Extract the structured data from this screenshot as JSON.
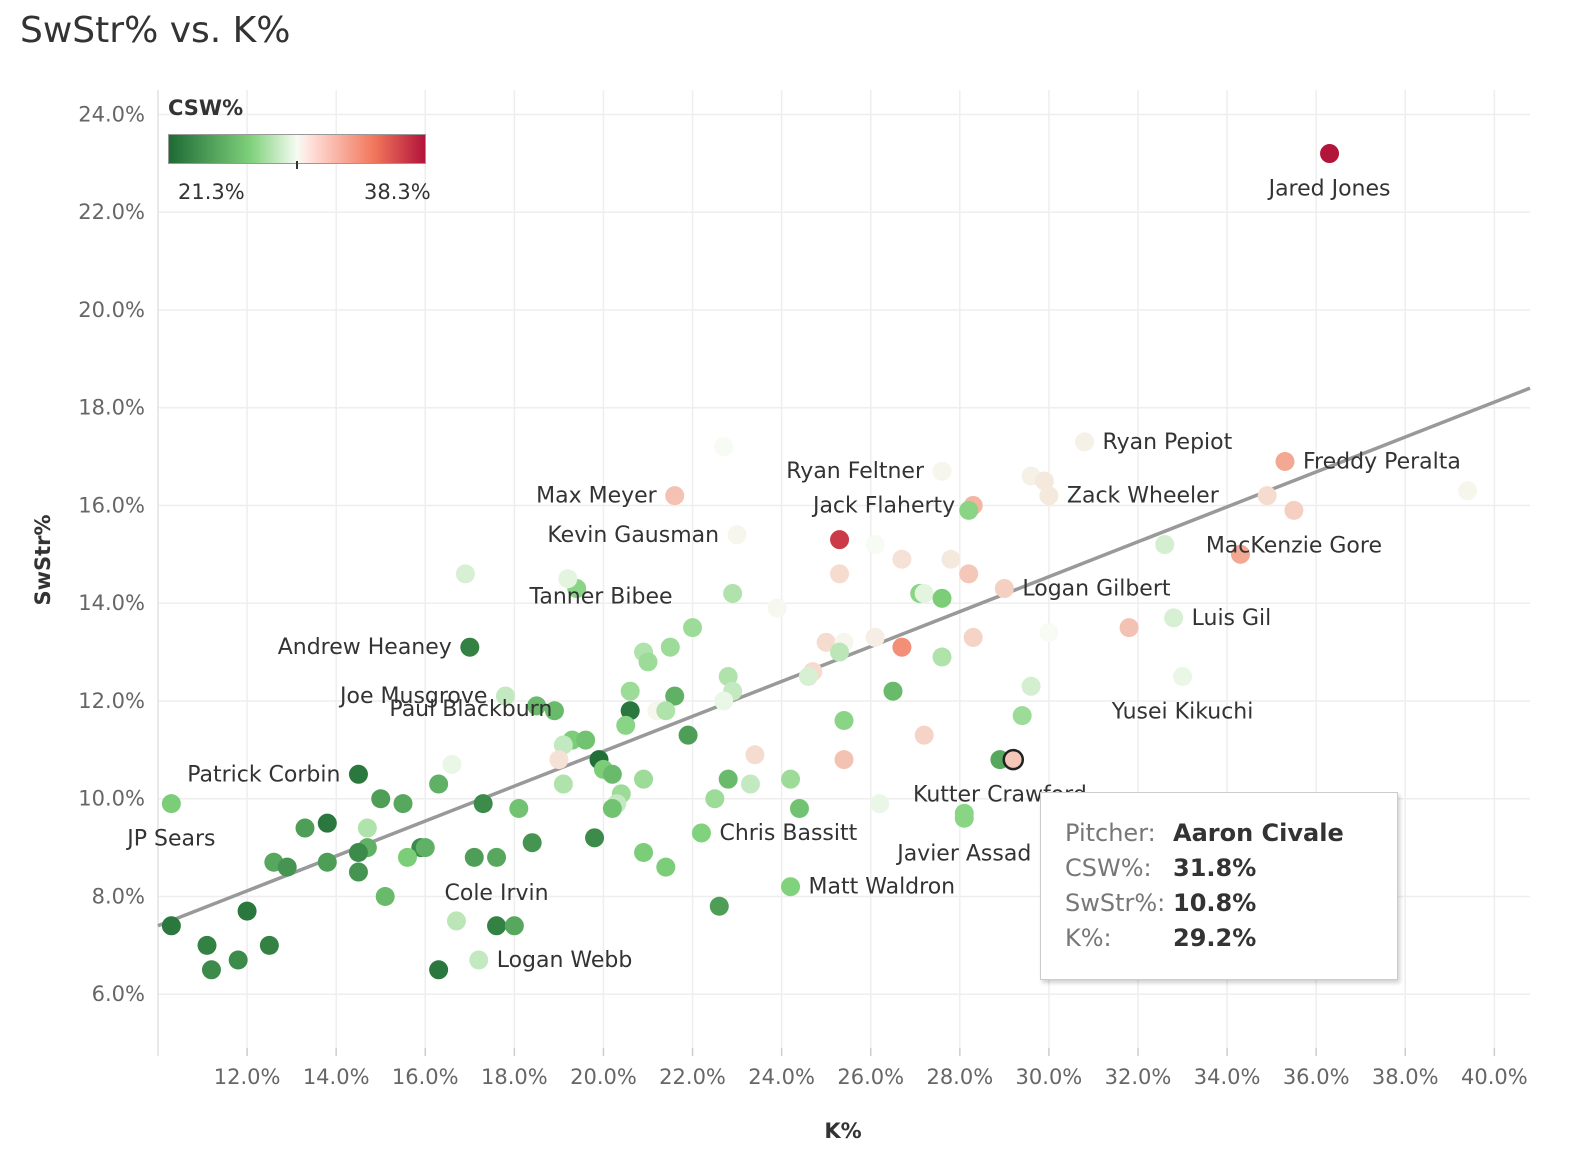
{
  "title": "SwStr% vs. K%",
  "legend": {
    "title": "CSW%",
    "min_label": "21.3%",
    "max_label": "38.3%",
    "min": 21.3,
    "max": 38.3
  },
  "tooltip": {
    "rows": [
      {
        "key": "Pitcher:",
        "value": "Aaron Civale"
      },
      {
        "key": "CSW%:",
        "value": "31.8%"
      },
      {
        "key": "SwStr%:",
        "value": "10.8%"
      },
      {
        "key": "K%:",
        "value": "29.2%"
      }
    ]
  },
  "colors": {
    "low": "#1e6b35",
    "mid_low": "#7fd17b",
    "mid": "#f6fbf3",
    "mid_high": "#f2775c",
    "high": "#b3143a",
    "trend": "#999999",
    "grid": "#eeeeee"
  },
  "chart_data": {
    "type": "scatter",
    "title": "SwStr% vs. K%",
    "xlabel": "K%",
    "ylabel": "SwStr%",
    "xlim": [
      10.0,
      40.8
    ],
    "ylim": [
      4.9,
      24.5
    ],
    "xticks": [
      12,
      14,
      16,
      18,
      20,
      22,
      24,
      26,
      28,
      30,
      32,
      34,
      36,
      38,
      40
    ],
    "xtick_labels": [
      "12.0%",
      "14.0%",
      "16.0%",
      "18.0%",
      "20.0%",
      "22.0%",
      "24.0%",
      "26.0%",
      "28.0%",
      "30.0%",
      "32.0%",
      "34.0%",
      "36.0%",
      "38.0%",
      "40.0%"
    ],
    "yticks": [
      6,
      8,
      10,
      12,
      14,
      16,
      18,
      20,
      22,
      24
    ],
    "ytick_labels": [
      "6.0%",
      "8.0%",
      "10.0%",
      "12.0%",
      "14.0%",
      "16.0%",
      "18.0%",
      "20.0%",
      "22.0%",
      "24.0%"
    ],
    "trendline": {
      "x": [
        10.0,
        40.8
      ],
      "y": [
        7.4,
        18.4
      ]
    },
    "color_field": "CSW%",
    "highlighted": "Aaron Civale",
    "grid": true,
    "points": [
      {
        "name": "Jared Jones",
        "x": 36.3,
        "y": 23.2,
        "csw": 38.3,
        "label_pos": "below"
      },
      {
        "name": "Ryan Pepiot",
        "x": 30.8,
        "y": 17.3,
        "csw": 30.2,
        "label_pos": "right"
      },
      {
        "name": "Freddy Peralta",
        "x": 35.3,
        "y": 16.9,
        "csw": 33.0,
        "label_pos": "right"
      },
      {
        "name": "Ryan Feltner",
        "x": 27.6,
        "y": 16.7,
        "csw": 30.0,
        "label_pos": "left"
      },
      {
        "name": "Max Meyer",
        "x": 21.6,
        "y": 16.2,
        "csw": 32.0,
        "label_pos": "left"
      },
      {
        "name": "Zack Wheeler",
        "x": 30.0,
        "y": 16.2,
        "csw": 30.5,
        "label_pos": "right"
      },
      {
        "name": "Jack Flaherty",
        "x": 28.3,
        "y": 16.0,
        "csw": 32.5,
        "label_pos": "left"
      },
      {
        "name": "MacKenzie Gore",
        "x": 35.5,
        "y": 15.9,
        "csw": 31.5,
        "label_pos": "below"
      },
      {
        "name": "Kevin Gausman",
        "x": 23.0,
        "y": 15.4,
        "csw": 30.0,
        "label_pos": "left"
      },
      {
        "name": "Logan Gilbert",
        "x": 29.0,
        "y": 14.3,
        "csw": 31.5,
        "label_pos": "right"
      },
      {
        "name": "Luis Gil",
        "x": 32.8,
        "y": 13.7,
        "csw": 29.0,
        "label_pos": "right"
      },
      {
        "name": "Tanner Bibee",
        "x": 22.0,
        "y": 13.5,
        "csw": 27.5,
        "label_pos": "aboveleft"
      },
      {
        "name": "Andrew Heaney",
        "x": 17.0,
        "y": 13.1,
        "csw": 22.5,
        "label_pos": "left"
      },
      {
        "name": "Yusei Kikuchi",
        "x": 33.0,
        "y": 12.5,
        "csw": 29.5,
        "label_pos": "below"
      },
      {
        "name": "Joe Musgrove",
        "x": 17.8,
        "y": 12.1,
        "csw": 28.5,
        "label_pos": "left"
      },
      {
        "name": "Paul Blackburn",
        "x": 19.3,
        "y": 11.2,
        "csw": 26.5,
        "label_pos": "aboveleft"
      },
      {
        "name": "Aaron Civale",
        "x": 29.2,
        "y": 10.8,
        "csw": 31.8,
        "label_pos": "none",
        "highlight": true
      },
      {
        "name": "Kutter Crawford",
        "x": 28.9,
        "y": 10.8,
        "csw": 24.5,
        "label_pos": "below"
      },
      {
        "name": "Patrick Corbin",
        "x": 14.5,
        "y": 10.5,
        "csw": 22.0,
        "label_pos": "left"
      },
      {
        "name": "JP Sears",
        "x": 10.3,
        "y": 9.9,
        "csw": 26.5,
        "label_pos": "below"
      },
      {
        "name": "Chris Bassitt",
        "x": 22.2,
        "y": 9.3,
        "csw": 26.8,
        "label_pos": "right"
      },
      {
        "name": "Javier Assad",
        "x": 28.1,
        "y": 9.6,
        "csw": 27.0,
        "label_pos": "below"
      },
      {
        "name": "Matt Waldron",
        "x": 24.2,
        "y": 8.2,
        "csw": 26.8,
        "label_pos": "right"
      },
      {
        "name": "Cole Irvin",
        "x": 17.6,
        "y": 7.4,
        "csw": 22.5,
        "label_pos": "above"
      },
      {
        "name": "Logan Webb",
        "x": 17.2,
        "y": 6.7,
        "csw": 28.5,
        "label_pos": "right"
      },
      {
        "name": "",
        "x": 22.7,
        "y": 17.2,
        "csw": 29.8
      },
      {
        "name": "",
        "x": 26.1,
        "y": 15.2,
        "csw": 29.8
      },
      {
        "name": "",
        "x": 26.7,
        "y": 14.9,
        "csw": 30.8
      },
      {
        "name": "",
        "x": 27.8,
        "y": 14.9,
        "csw": 30.5
      },
      {
        "name": "",
        "x": 25.3,
        "y": 14.6,
        "csw": 31.0
      },
      {
        "name": "",
        "x": 28.2,
        "y": 14.6,
        "csw": 31.8
      },
      {
        "name": "",
        "x": 25.3,
        "y": 15.3,
        "csw": 37.0
      },
      {
        "name": "",
        "x": 29.6,
        "y": 16.6,
        "csw": 30.2
      },
      {
        "name": "",
        "x": 29.9,
        "y": 16.5,
        "csw": 30.5
      },
      {
        "name": "",
        "x": 34.9,
        "y": 16.2,
        "csw": 31.0
      },
      {
        "name": "",
        "x": 39.4,
        "y": 16.3,
        "csw": 30.0
      },
      {
        "name": "",
        "x": 34.3,
        "y": 15.0,
        "csw": 33.0
      },
      {
        "name": "",
        "x": 28.2,
        "y": 15.9,
        "csw": 27.0
      },
      {
        "name": "",
        "x": 32.6,
        "y": 15.2,
        "csw": 28.9
      },
      {
        "name": "",
        "x": 16.9,
        "y": 14.6,
        "csw": 29.0
      },
      {
        "name": "",
        "x": 19.4,
        "y": 14.3,
        "csw": 27.0
      },
      {
        "name": "",
        "x": 19.2,
        "y": 14.5,
        "csw": 29.3
      },
      {
        "name": "",
        "x": 22.9,
        "y": 14.2,
        "csw": 28.0
      },
      {
        "name": "",
        "x": 27.1,
        "y": 14.2,
        "csw": 27.0
      },
      {
        "name": "",
        "x": 27.2,
        "y": 14.2,
        "csw": 29.3
      },
      {
        "name": "",
        "x": 27.6,
        "y": 14.1,
        "csw": 26.5
      },
      {
        "name": "",
        "x": 23.9,
        "y": 13.9,
        "csw": 29.9
      },
      {
        "name": "",
        "x": 31.8,
        "y": 13.5,
        "csw": 32.0
      },
      {
        "name": "",
        "x": 30.0,
        "y": 13.4,
        "csw": 29.8
      },
      {
        "name": "",
        "x": 28.3,
        "y": 13.3,
        "csw": 31.3
      },
      {
        "name": "",
        "x": 26.1,
        "y": 13.3,
        "csw": 30.3
      },
      {
        "name": "",
        "x": 25.0,
        "y": 13.2,
        "csw": 31.0
      },
      {
        "name": "",
        "x": 25.4,
        "y": 13.2,
        "csw": 30.0
      },
      {
        "name": "",
        "x": 26.7,
        "y": 13.1,
        "csw": 34.0
      },
      {
        "name": "",
        "x": 25.3,
        "y": 13.0,
        "csw": 28.3
      },
      {
        "name": "",
        "x": 27.6,
        "y": 12.9,
        "csw": 28.0
      },
      {
        "name": "",
        "x": 20.9,
        "y": 13.0,
        "csw": 28.0
      },
      {
        "name": "",
        "x": 21.0,
        "y": 12.8,
        "csw": 27.5
      },
      {
        "name": "",
        "x": 21.5,
        "y": 13.1,
        "csw": 27.5
      },
      {
        "name": "",
        "x": 24.7,
        "y": 12.6,
        "csw": 31.0
      },
      {
        "name": "",
        "x": 24.6,
        "y": 12.5,
        "csw": 29.0
      },
      {
        "name": "",
        "x": 22.8,
        "y": 12.5,
        "csw": 28.0
      },
      {
        "name": "",
        "x": 22.9,
        "y": 12.2,
        "csw": 28.5
      },
      {
        "name": "",
        "x": 20.6,
        "y": 12.2,
        "csw": 27.5
      },
      {
        "name": "",
        "x": 26.5,
        "y": 12.2,
        "csw": 25.5
      },
      {
        "name": "",
        "x": 29.6,
        "y": 12.3,
        "csw": 28.9
      },
      {
        "name": "",
        "x": 21.6,
        "y": 12.1,
        "csw": 25.0
      },
      {
        "name": "",
        "x": 22.7,
        "y": 12.0,
        "csw": 29.5
      },
      {
        "name": "",
        "x": 21.2,
        "y": 11.8,
        "csw": 30.0
      },
      {
        "name": "",
        "x": 21.4,
        "y": 11.8,
        "csw": 28.0
      },
      {
        "name": "",
        "x": 20.6,
        "y": 11.8,
        "csw": 22.0
      },
      {
        "name": "",
        "x": 18.5,
        "y": 11.9,
        "csw": 25.5
      },
      {
        "name": "",
        "x": 18.9,
        "y": 11.8,
        "csw": 25.5
      },
      {
        "name": "",
        "x": 20.5,
        "y": 11.5,
        "csw": 27.0
      },
      {
        "name": "",
        "x": 25.4,
        "y": 11.6,
        "csw": 27.0
      },
      {
        "name": "",
        "x": 29.4,
        "y": 11.7,
        "csw": 27.5
      },
      {
        "name": "",
        "x": 27.2,
        "y": 11.3,
        "csw": 31.3
      },
      {
        "name": "",
        "x": 21.9,
        "y": 11.3,
        "csw": 24.0
      },
      {
        "name": "",
        "x": 19.6,
        "y": 11.2,
        "csw": 26.0
      },
      {
        "name": "",
        "x": 19.1,
        "y": 11.1,
        "csw": 28.5
      },
      {
        "name": "",
        "x": 23.4,
        "y": 10.9,
        "csw": 31.0
      },
      {
        "name": "",
        "x": 25.4,
        "y": 10.8,
        "csw": 32.0
      },
      {
        "name": "",
        "x": 19.0,
        "y": 10.8,
        "csw": 30.8
      },
      {
        "name": "",
        "x": 19.9,
        "y": 10.8,
        "csw": 21.5
      },
      {
        "name": "",
        "x": 16.6,
        "y": 10.7,
        "csw": 29.5
      },
      {
        "name": "",
        "x": 20.0,
        "y": 10.6,
        "csw": 26.5
      },
      {
        "name": "",
        "x": 20.2,
        "y": 10.5,
        "csw": 25.5
      },
      {
        "name": "",
        "x": 20.9,
        "y": 10.4,
        "csw": 27.5
      },
      {
        "name": "",
        "x": 22.8,
        "y": 10.4,
        "csw": 25.5
      },
      {
        "name": "",
        "x": 24.2,
        "y": 10.4,
        "csw": 27.5
      },
      {
        "name": "",
        "x": 23.3,
        "y": 10.3,
        "csw": 28.5
      },
      {
        "name": "",
        "x": 16.3,
        "y": 10.3,
        "csw": 25.0
      },
      {
        "name": "",
        "x": 19.1,
        "y": 10.3,
        "csw": 28.0
      },
      {
        "name": "",
        "x": 20.4,
        "y": 10.1,
        "csw": 27.5
      },
      {
        "name": "",
        "x": 15.0,
        "y": 10.0,
        "csw": 24.0
      },
      {
        "name": "",
        "x": 15.5,
        "y": 9.9,
        "csw": 24.5
      },
      {
        "name": "",
        "x": 17.3,
        "y": 9.9,
        "csw": 23.0
      },
      {
        "name": "",
        "x": 20.3,
        "y": 9.9,
        "csw": 28.5
      },
      {
        "name": "",
        "x": 22.5,
        "y": 10.0,
        "csw": 27.5
      },
      {
        "name": "",
        "x": 26.2,
        "y": 9.9,
        "csw": 29.5
      },
      {
        "name": "",
        "x": 18.1,
        "y": 9.8,
        "csw": 26.0
      },
      {
        "name": "",
        "x": 20.2,
        "y": 9.8,
        "csw": 26.0
      },
      {
        "name": "",
        "x": 24.4,
        "y": 9.8,
        "csw": 26.0
      },
      {
        "name": "",
        "x": 28.1,
        "y": 9.7,
        "csw": 27.0
      },
      {
        "name": "",
        "x": 13.8,
        "y": 9.5,
        "csw": 22.0
      },
      {
        "name": "",
        "x": 13.3,
        "y": 9.4,
        "csw": 24.0
      },
      {
        "name": "",
        "x": 14.7,
        "y": 9.4,
        "csw": 28.0
      },
      {
        "name": "",
        "x": 19.8,
        "y": 9.2,
        "csw": 23.0
      },
      {
        "name": "",
        "x": 18.4,
        "y": 9.1,
        "csw": 23.5
      },
      {
        "name": "",
        "x": 15.9,
        "y": 9.0,
        "csw": 23.0
      },
      {
        "name": "",
        "x": 16.0,
        "y": 9.0,
        "csw": 25.0
      },
      {
        "name": "",
        "x": 14.7,
        "y": 9.0,
        "csw": 25.0
      },
      {
        "name": "",
        "x": 14.5,
        "y": 8.9,
        "csw": 23.0
      },
      {
        "name": "",
        "x": 15.6,
        "y": 8.8,
        "csw": 26.5
      },
      {
        "name": "",
        "x": 20.9,
        "y": 8.9,
        "csw": 26.5
      },
      {
        "name": "",
        "x": 17.1,
        "y": 8.8,
        "csw": 24.0
      },
      {
        "name": "",
        "x": 17.6,
        "y": 8.8,
        "csw": 24.5
      },
      {
        "name": "",
        "x": 21.4,
        "y": 8.6,
        "csw": 26.5
      },
      {
        "name": "",
        "x": 12.6,
        "y": 8.7,
        "csw": 24.5
      },
      {
        "name": "",
        "x": 12.9,
        "y": 8.6,
        "csw": 23.5
      },
      {
        "name": "",
        "x": 13.8,
        "y": 8.7,
        "csw": 24.0
      },
      {
        "name": "",
        "x": 14.5,
        "y": 8.5,
        "csw": 23.5
      },
      {
        "name": "",
        "x": 15.1,
        "y": 8.0,
        "csw": 25.5
      },
      {
        "name": "",
        "x": 22.6,
        "y": 7.8,
        "csw": 24.0
      },
      {
        "name": "",
        "x": 12.0,
        "y": 7.7,
        "csw": 22.0
      },
      {
        "name": "",
        "x": 16.7,
        "y": 7.5,
        "csw": 28.3
      },
      {
        "name": "",
        "x": 18.0,
        "y": 7.4,
        "csw": 24.5
      },
      {
        "name": "",
        "x": 10.3,
        "y": 7.4,
        "csw": 22.0
      },
      {
        "name": "",
        "x": 11.1,
        "y": 7.0,
        "csw": 22.5
      },
      {
        "name": "",
        "x": 12.5,
        "y": 7.0,
        "csw": 22.5
      },
      {
        "name": "",
        "x": 11.8,
        "y": 6.7,
        "csw": 23.0
      },
      {
        "name": "",
        "x": 11.2,
        "y": 6.5,
        "csw": 23.0
      },
      {
        "name": "",
        "x": 16.3,
        "y": 6.5,
        "csw": 22.0
      }
    ]
  }
}
